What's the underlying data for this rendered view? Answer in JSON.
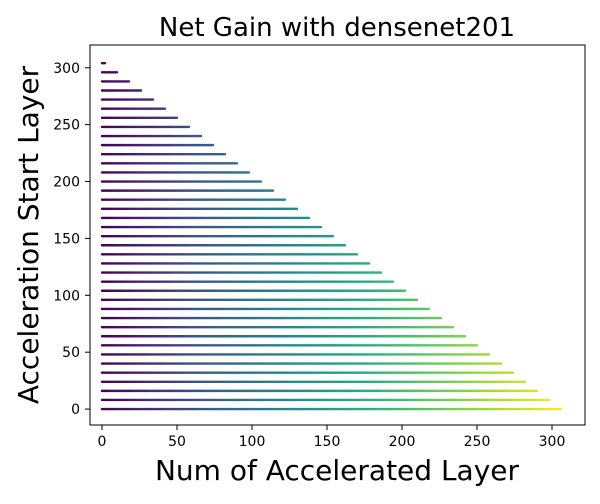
{
  "chart_data": {
    "type": "line",
    "title": "Net Gain with densenet201",
    "xlabel": "Num of Accelerated Layer",
    "ylabel": "Acceleration Start Layer",
    "xlim": [
      -8,
      322
    ],
    "ylim": [
      -14,
      320
    ],
    "x_ticks": [
      0,
      50,
      100,
      150,
      200,
      250,
      300
    ],
    "y_ticks": [
      0,
      50,
      100,
      150,
      200,
      250,
      300
    ],
    "x_tick_labels": [
      "0",
      "50",
      "100",
      "150",
      "200",
      "250",
      "300"
    ],
    "y_tick_labels": [
      "0",
      "50",
      "100",
      "150",
      "200",
      "250",
      "300"
    ],
    "grid": false,
    "legend": "none",
    "colormap": "viridis",
    "max_layer": 306,
    "start_layers": [
      0,
      8,
      16,
      24,
      32,
      40,
      48,
      56,
      64,
      72,
      80,
      88,
      96,
      104,
      112,
      120,
      128,
      136,
      144,
      152,
      160,
      168,
      176,
      184,
      192,
      200,
      208,
      216,
      224,
      232,
      240,
      248,
      256,
      264,
      272,
      280,
      288,
      296,
      304
    ],
    "colors": {
      "low": "#440154",
      "mid": "#21918c",
      "high": "#fde725"
    }
  }
}
